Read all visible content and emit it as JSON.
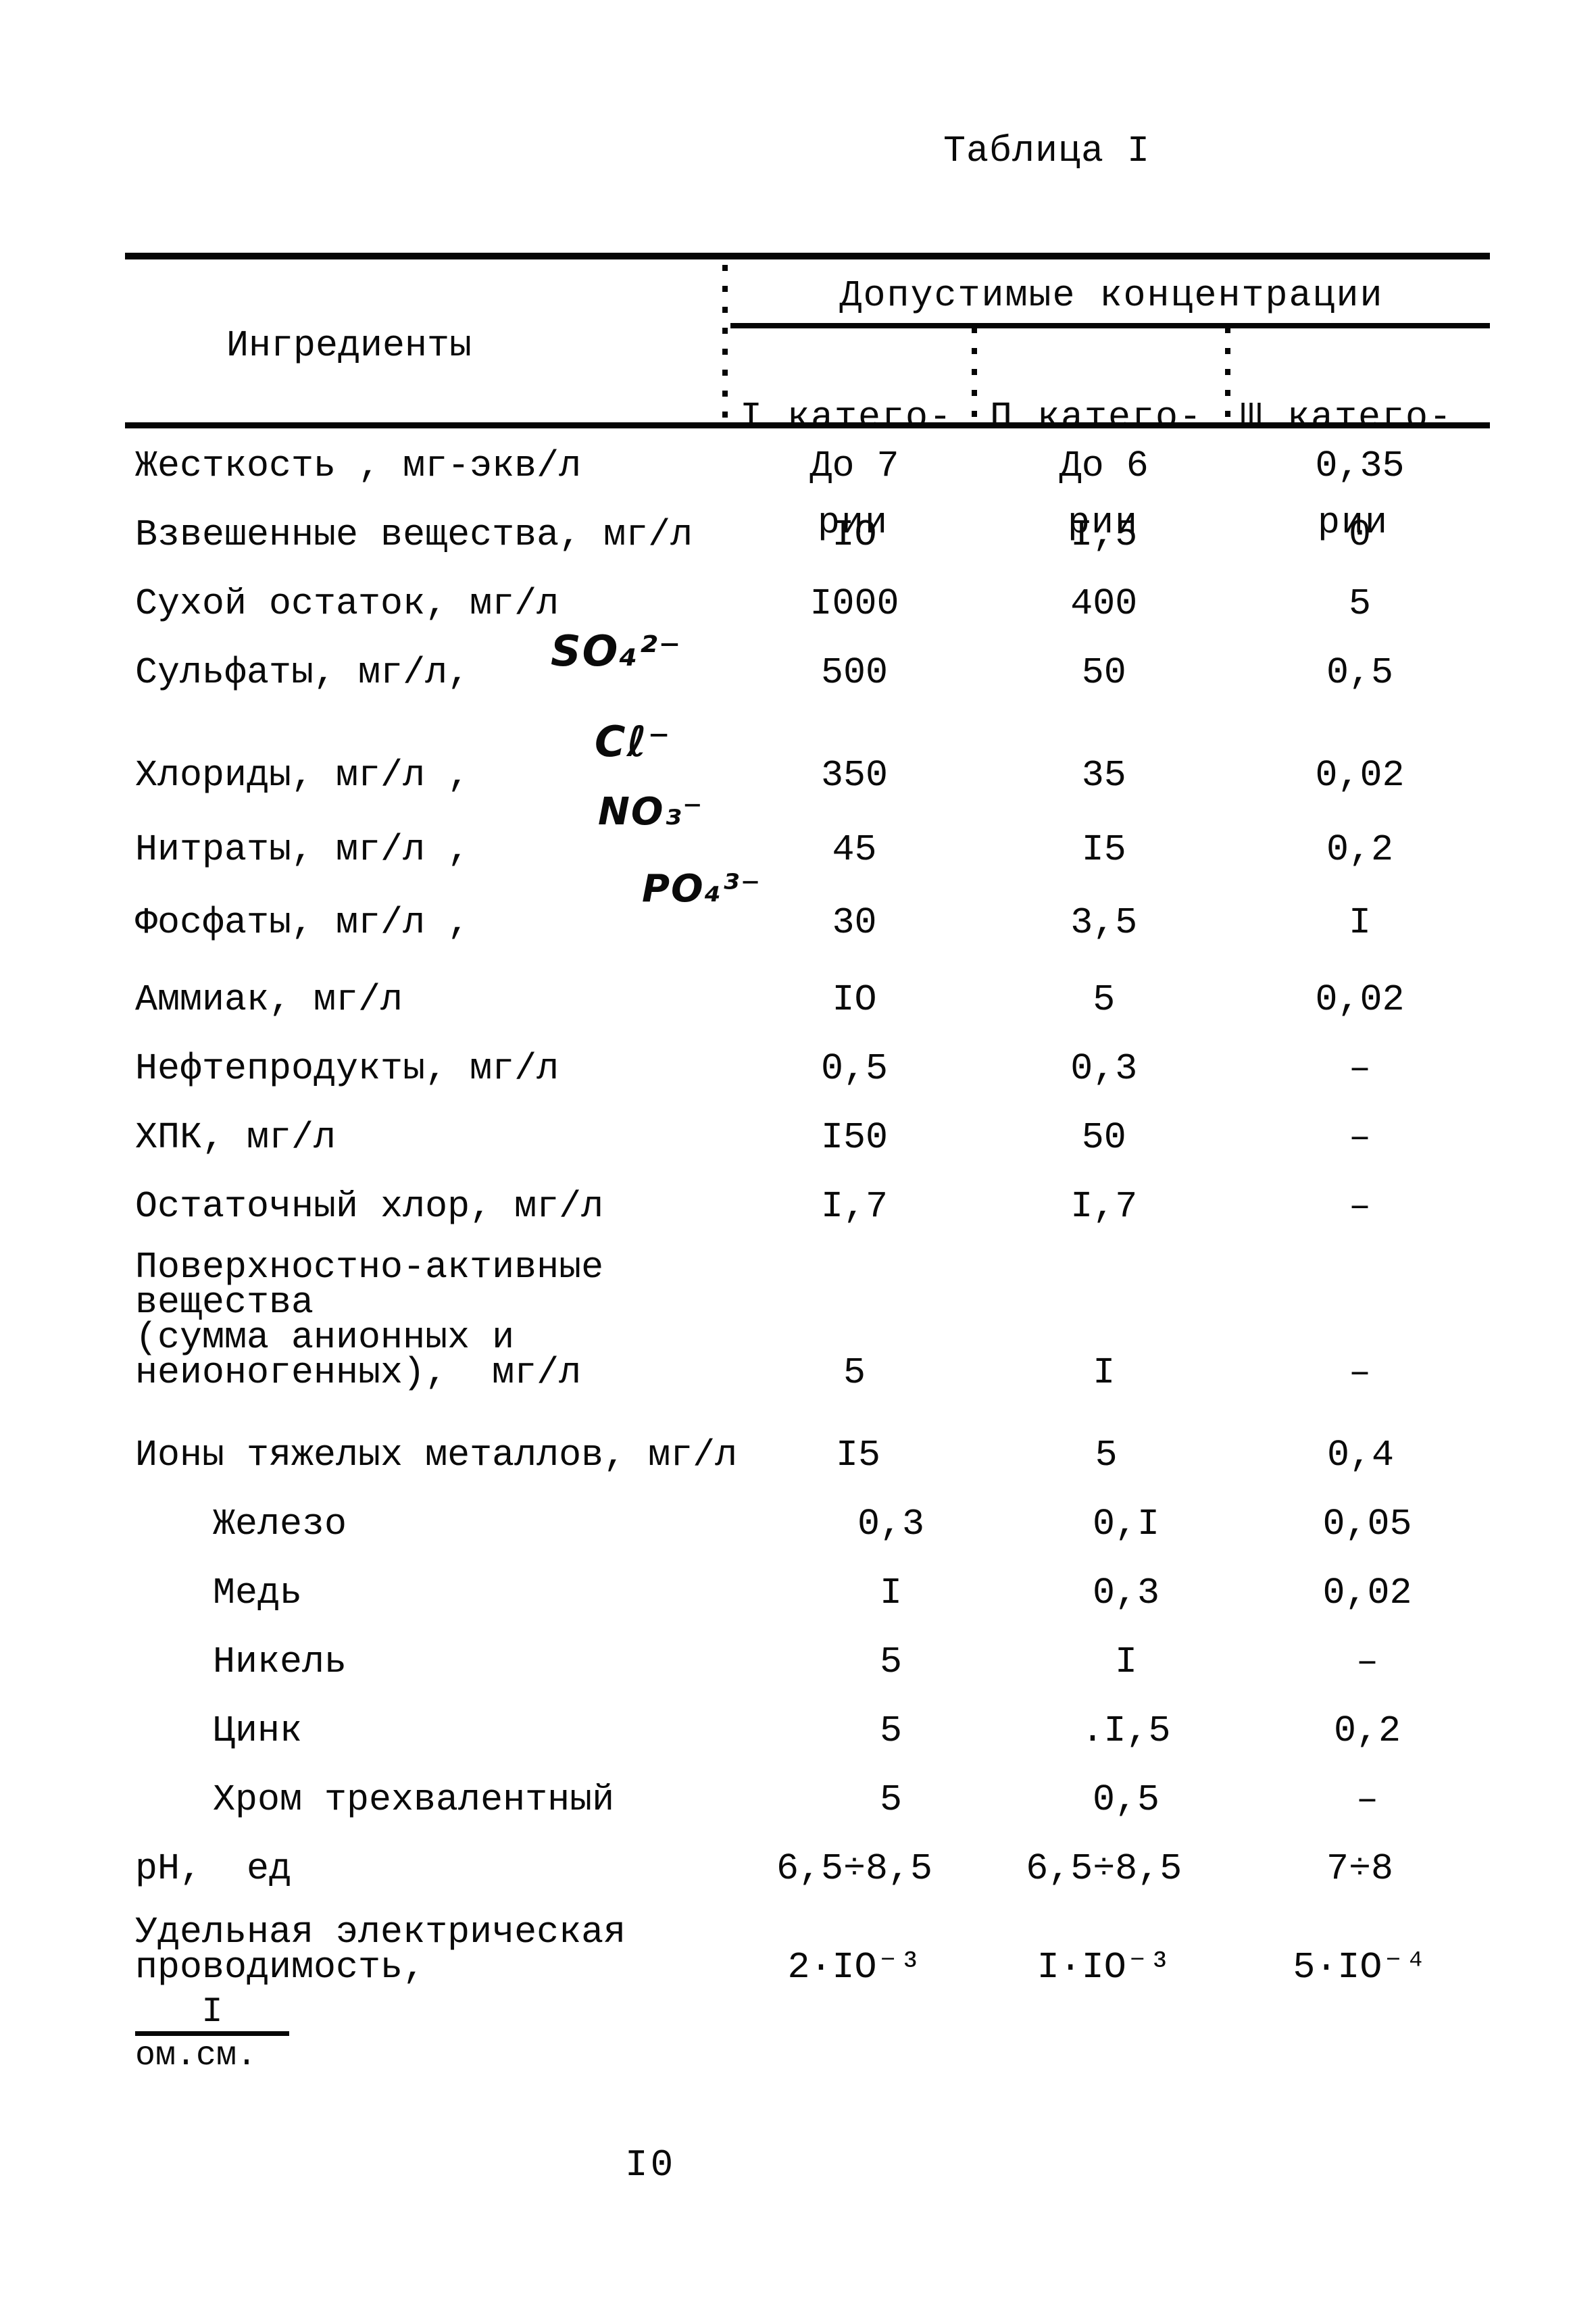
{
  "page": {
    "title": "Таблица I",
    "page_number": "I0"
  },
  "table": {
    "ingredient_col_header": "Ингредиенты",
    "group_header": "Допустимые концентрации",
    "category_headers": [
      {
        "line1": "I катего-",
        "line2": "рии"
      },
      {
        "line1": "П катего-",
        "line2": "рии"
      },
      {
        "line1": "Ш катего-",
        "line2": "рии"
      }
    ],
    "rows": [
      {
        "label_lines": [
          "Жесткость , мг-экв/л"
        ],
        "values": [
          "До 7",
          "До 6",
          "0,35"
        ]
      },
      {
        "label_lines": [
          "Взвешенные вещества, мг/л"
        ],
        "values": [
          "IO",
          "I,5",
          "0"
        ]
      },
      {
        "label_lines": [
          "Сухой остаток, мг/л"
        ],
        "values": [
          "I000",
          "400",
          "5"
        ]
      },
      {
        "label_lines": [
          "Сульфаты, мг/л,"
        ],
        "formula": "SO₄²⁻",
        "values": [
          "500",
          "50",
          "0,5"
        ]
      },
      {
        "label_lines": [
          "Хлориды, мг/л ,"
        ],
        "formula": "Cℓ⁻",
        "values": [
          "350",
          "35",
          "0,02"
        ]
      },
      {
        "label_lines": [
          "Нитраты, мг/л ,"
        ],
        "formula": "NO₃⁻",
        "values": [
          "45",
          "I5",
          "0,2"
        ]
      },
      {
        "label_lines": [
          "Фосфаты, мг/л ,"
        ],
        "formula": "PO₄³⁻",
        "values": [
          "30",
          "3,5",
          "I"
        ]
      },
      {
        "label_lines": [
          "Аммиак, мг/л"
        ],
        "values": [
          "IO",
          "5",
          "0,02"
        ]
      },
      {
        "label_lines": [
          "Нефтепродукты, мг/л"
        ],
        "values": [
          "0,5",
          "0,3",
          "–"
        ]
      },
      {
        "label_lines": [
          "ХПК, мг/л"
        ],
        "values": [
          "I50",
          "50",
          "–"
        ]
      },
      {
        "label_lines": [
          "Остаточный хлор, мг/л"
        ],
        "values": [
          "I,7",
          "I,7",
          "–"
        ]
      },
      {
        "label_lines": [
          "Поверхностно-активные",
          "вещества",
          "(сумма анионных и",
          "неионогенных),  мг/л"
        ],
        "values": [
          "5",
          "I",
          "–"
        ]
      },
      {
        "label_lines": [
          "Ионы тяжелых металлов, мг/л"
        ],
        "values": [
          "I5",
          "5",
          "0,4"
        ]
      },
      {
        "label_lines": [
          "Железо"
        ],
        "indent": true,
        "values": [
          "0,3",
          "0,I",
          "0,05"
        ]
      },
      {
        "label_lines": [
          "Медь"
        ],
        "indent": true,
        "values": [
          "I",
          "0,3",
          "0,02"
        ]
      },
      {
        "label_lines": [
          "Никель"
        ],
        "indent": true,
        "values": [
          "5",
          "I",
          "–"
        ]
      },
      {
        "label_lines": [
          "Цинк"
        ],
        "indent": true,
        "values": [
          "5",
          ".I,5",
          "0,2"
        ]
      },
      {
        "label_lines": [
          "Хром трехвалентный"
        ],
        "indent": true,
        "values": [
          "5",
          "0,5",
          "–"
        ]
      },
      {
        "label_lines": [
          "рН,  ед"
        ],
        "values": [
          "6,5÷8,5",
          "6,5÷8,5",
          "7÷8"
        ]
      },
      {
        "label_lines": [
          "Удельная электрическая",
          "проводимость,"
        ],
        "fraction": {
          "numerator": "I",
          "denominator": "ом.см."
        },
        "values": [
          "2·IO⁻³",
          "I·IO⁻³",
          "5·IO⁻⁴"
        ]
      }
    ]
  }
}
